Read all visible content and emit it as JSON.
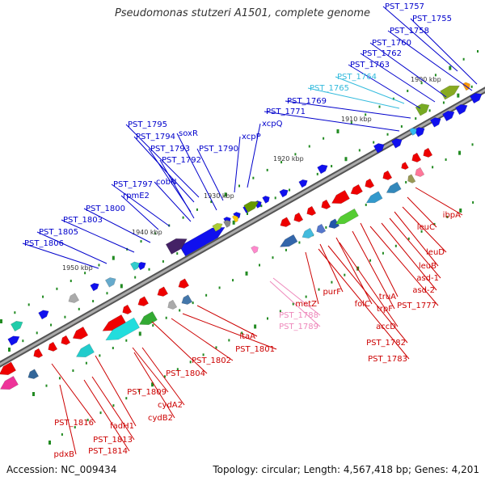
{
  "title": "Pseudomonas stutzeri A1501, complete genome",
  "accession_label": "Accession:",
  "accession": "NC_009434",
  "footer_stats": "Topology: circular; Length: 4,567,418 bp; Genes: 4,201",
  "colors": {
    "forward_label": "#0000cc",
    "reverse_label": "#cc0000",
    "rna_label": "#33bbdd",
    "pseudo_label": "#ee88bb",
    "backbone": "#888888",
    "tick": "#228b22"
  },
  "scale_labels": [
    "1950 kbp",
    "1940 kbp",
    "1930 kbp",
    "1920 kbp",
    "1910 kbp",
    "1900 kbp"
  ],
  "genes_upper": [
    "PST_1757",
    "PST_1755",
    "PST_1758",
    "PST_1760",
    "PST_1762",
    "PST_1763",
    "PST_1764",
    "PST_1765",
    "PST_1769",
    "PST_1771",
    "xcpQ",
    "xcpP",
    "PST_1790",
    "soxR",
    "PST_1795",
    "PST_1794",
    "PST_1793",
    "PST_1792",
    "cobN",
    "PST_1797",
    "rpmE2",
    "PST_1800",
    "PST_1803",
    "PST_1805",
    "PST_1806"
  ],
  "genes_lower": [
    "ibpA",
    "leuC",
    "leuD",
    "leuB",
    "asd-1",
    "asd-2",
    "PST_1777",
    "truA",
    "trpF",
    "folC",
    "accD",
    "purF",
    "metZ",
    "PST_1782",
    "PST_1783",
    "PST_1788",
    "PST_1789",
    "ltaA",
    "PST_1801",
    "PST_1802",
    "PST_1804",
    "PST_1809",
    "cydA2",
    "cydB2",
    "fadH1",
    "PST_1816",
    "PST_1813",
    "PST_1814",
    "pdxB"
  ]
}
